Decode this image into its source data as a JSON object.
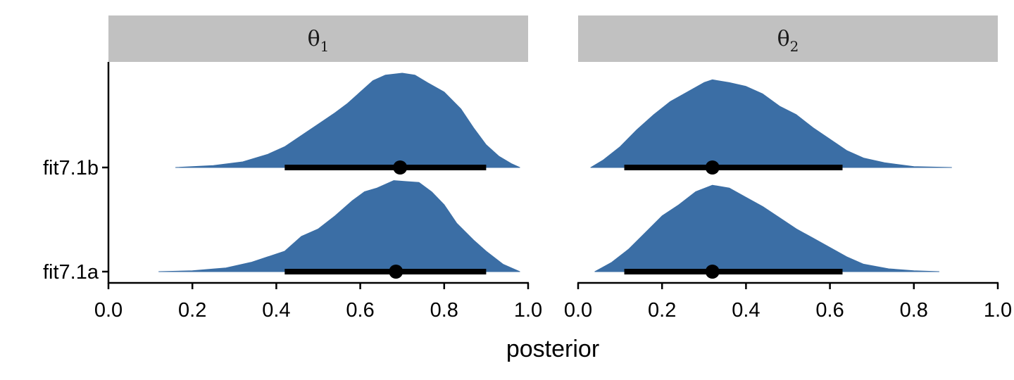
{
  "chart_data": {
    "type": "halfeye",
    "xlabel": "posterior",
    "ylabel": "",
    "xlim": [
      0,
      1
    ],
    "x_ticks": [
      0.0,
      0.2,
      0.4,
      0.6,
      0.8,
      1.0
    ],
    "x_tick_labels": [
      "0.0",
      "0.2",
      "0.4",
      "0.6",
      "0.8",
      "1.0"
    ],
    "y_categories": [
      "fit7.1b",
      "fit7.1a"
    ],
    "fill_color": "#3b6ea5",
    "panels": [
      {
        "facet_label": "θ",
        "facet_subscript": "1",
        "series": [
          {
            "model": "fit7.1b",
            "point": 0.695,
            "interval": [
              0.42,
              0.9
            ],
            "density": [
              [
                0.16,
                0.0
              ],
              [
                0.25,
                0.02
              ],
              [
                0.32,
                0.06
              ],
              [
                0.38,
                0.14
              ],
              [
                0.42,
                0.22
              ],
              [
                0.46,
                0.34
              ],
              [
                0.5,
                0.46
              ],
              [
                0.54,
                0.58
              ],
              [
                0.57,
                0.68
              ],
              [
                0.6,
                0.8
              ],
              [
                0.63,
                0.92
              ],
              [
                0.66,
                0.98
              ],
              [
                0.7,
                1.0
              ],
              [
                0.73,
                0.98
              ],
              [
                0.76,
                0.9
              ],
              [
                0.8,
                0.8
              ],
              [
                0.84,
                0.62
              ],
              [
                0.87,
                0.42
              ],
              [
                0.9,
                0.24
              ],
              [
                0.93,
                0.12
              ],
              [
                0.96,
                0.04
              ],
              [
                0.98,
                0.0
              ]
            ]
          },
          {
            "model": "fit7.1a",
            "point": 0.685,
            "interval": [
              0.42,
              0.9
            ],
            "density": [
              [
                0.12,
                0.0
              ],
              [
                0.2,
                0.01
              ],
              [
                0.28,
                0.04
              ],
              [
                0.34,
                0.1
              ],
              [
                0.38,
                0.16
              ],
              [
                0.42,
                0.22
              ],
              [
                0.46,
                0.38
              ],
              [
                0.5,
                0.46
              ],
              [
                0.54,
                0.6
              ],
              [
                0.58,
                0.76
              ],
              [
                0.61,
                0.86
              ],
              [
                0.64,
                0.9
              ],
              [
                0.68,
                0.98
              ],
              [
                0.71,
                0.97
              ],
              [
                0.74,
                0.96
              ],
              [
                0.77,
                0.86
              ],
              [
                0.8,
                0.72
              ],
              [
                0.83,
                0.52
              ],
              [
                0.87,
                0.34
              ],
              [
                0.9,
                0.22
              ],
              [
                0.94,
                0.08
              ],
              [
                0.98,
                0.0
              ]
            ]
          }
        ]
      },
      {
        "facet_label": "θ",
        "facet_subscript": "2",
        "series": [
          {
            "model": "fit7.1b",
            "point": 0.32,
            "interval": [
              0.11,
              0.63
            ],
            "density": [
              [
                0.03,
                0.0
              ],
              [
                0.06,
                0.08
              ],
              [
                0.1,
                0.22
              ],
              [
                0.14,
                0.4
              ],
              [
                0.18,
                0.56
              ],
              [
                0.22,
                0.7
              ],
              [
                0.26,
                0.8
              ],
              [
                0.3,
                0.9
              ],
              [
                0.32,
                0.93
              ],
              [
                0.36,
                0.9
              ],
              [
                0.4,
                0.86
              ],
              [
                0.44,
                0.78
              ],
              [
                0.48,
                0.65
              ],
              [
                0.52,
                0.56
              ],
              [
                0.56,
                0.42
              ],
              [
                0.6,
                0.3
              ],
              [
                0.64,
                0.18
              ],
              [
                0.68,
                0.1
              ],
              [
                0.73,
                0.05
              ],
              [
                0.8,
                0.01
              ],
              [
                0.89,
                0.0
              ]
            ]
          },
          {
            "model": "fit7.1a",
            "point": 0.32,
            "interval": [
              0.11,
              0.63
            ],
            "density": [
              [
                0.04,
                0.0
              ],
              [
                0.08,
                0.1
              ],
              [
                0.12,
                0.24
              ],
              [
                0.16,
                0.42
              ],
              [
                0.2,
                0.6
              ],
              [
                0.24,
                0.72
              ],
              [
                0.28,
                0.86
              ],
              [
                0.32,
                0.93
              ],
              [
                0.36,
                0.9
              ],
              [
                0.4,
                0.8
              ],
              [
                0.44,
                0.7
              ],
              [
                0.48,
                0.58
              ],
              [
                0.52,
                0.46
              ],
              [
                0.56,
                0.36
              ],
              [
                0.6,
                0.26
              ],
              [
                0.64,
                0.16
              ],
              [
                0.68,
                0.08
              ],
              [
                0.74,
                0.03
              ],
              [
                0.8,
                0.01
              ],
              [
                0.86,
                0.0
              ]
            ]
          }
        ]
      }
    ]
  }
}
